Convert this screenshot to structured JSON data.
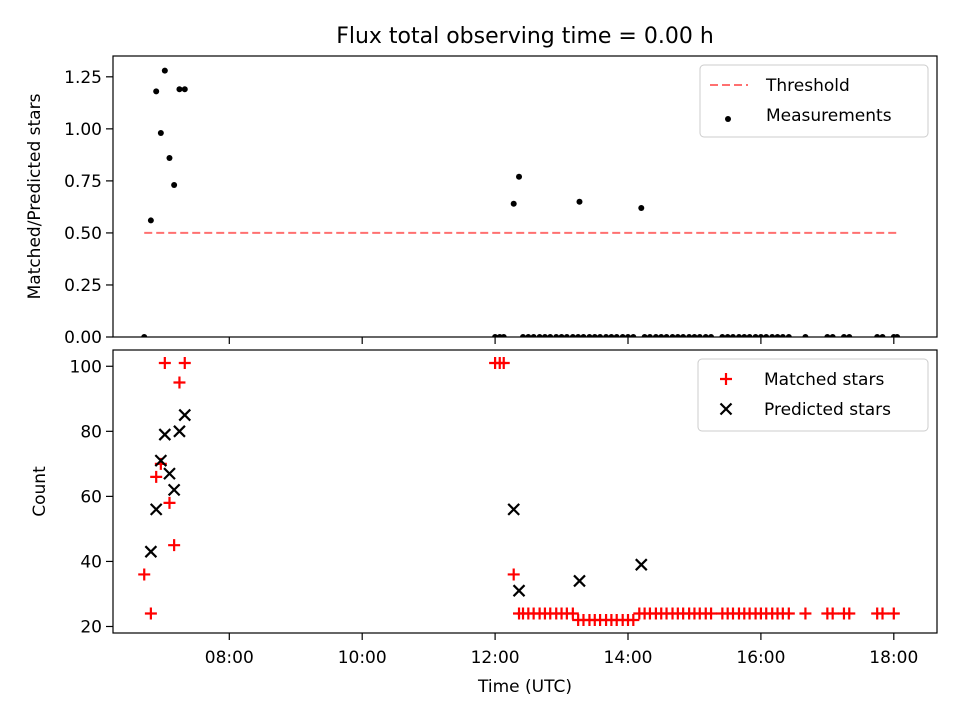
{
  "figure": {
    "title": "Flux total observing time = 0.00 h"
  },
  "chart_data": [
    {
      "type": "scatter",
      "ylabel": "Matched/Predicted stars",
      "ylim": [
        0,
        1.35
      ],
      "xlim_hours": [
        6.25,
        18.65
      ],
      "yticks": [
        0.0,
        0.25,
        0.5,
        0.75,
        1.0,
        1.25
      ],
      "ytick_labels": [
        "0.00",
        "0.25",
        "0.50",
        "0.75",
        "1.00",
        "1.25"
      ],
      "grid": false,
      "legend_position": "top-right",
      "threshold": {
        "name": "Threshold",
        "value": 0.5,
        "x_start": 6.72,
        "x_end": 18.05,
        "color": "#ff7070"
      },
      "series": [
        {
          "name": "Measurements",
          "color": "#000000",
          "marker": "dot",
          "points": [
            [
              6.72,
              0.0
            ],
            [
              6.82,
              0.56
            ],
            [
              6.9,
              1.18
            ],
            [
              6.97,
              0.98
            ],
            [
              7.03,
              1.28
            ],
            [
              7.1,
              0.86
            ],
            [
              7.17,
              0.73
            ],
            [
              7.25,
              1.19
            ],
            [
              7.33,
              1.19
            ],
            [
              12.0,
              0.0
            ],
            [
              12.07,
              0.0
            ],
            [
              12.13,
              0.0
            ],
            [
              12.28,
              0.64
            ],
            [
              12.36,
              0.77
            ],
            [
              12.42,
              0.0
            ],
            [
              12.5,
              0.0
            ],
            [
              12.58,
              0.0
            ],
            [
              12.67,
              0.0
            ],
            [
              12.75,
              0.0
            ],
            [
              12.83,
              0.0
            ],
            [
              12.92,
              0.0
            ],
            [
              13.0,
              0.0
            ],
            [
              13.08,
              0.0
            ],
            [
              13.17,
              0.0
            ],
            [
              13.25,
              0.0
            ],
            [
              13.27,
              0.65
            ],
            [
              13.33,
              0.0
            ],
            [
              13.42,
              0.0
            ],
            [
              13.5,
              0.0
            ],
            [
              13.58,
              0.0
            ],
            [
              13.67,
              0.0
            ],
            [
              13.75,
              0.0
            ],
            [
              13.83,
              0.0
            ],
            [
              13.92,
              0.0
            ],
            [
              14.0,
              0.0
            ],
            [
              14.08,
              0.0
            ],
            [
              14.2,
              0.62
            ],
            [
              14.25,
              0.0
            ],
            [
              14.33,
              0.0
            ],
            [
              14.42,
              0.0
            ],
            [
              14.5,
              0.0
            ],
            [
              14.58,
              0.0
            ],
            [
              14.67,
              0.0
            ],
            [
              14.75,
              0.0
            ],
            [
              14.83,
              0.0
            ],
            [
              14.92,
              0.0
            ],
            [
              15.0,
              0.0
            ],
            [
              15.08,
              0.0
            ],
            [
              15.17,
              0.0
            ],
            [
              15.25,
              0.0
            ],
            [
              15.42,
              0.0
            ],
            [
              15.5,
              0.0
            ],
            [
              15.58,
              0.0
            ],
            [
              15.67,
              0.0
            ],
            [
              15.75,
              0.0
            ],
            [
              15.83,
              0.0
            ],
            [
              15.92,
              0.0
            ],
            [
              16.0,
              0.0
            ],
            [
              16.08,
              0.0
            ],
            [
              16.17,
              0.0
            ],
            [
              16.25,
              0.0
            ],
            [
              16.33,
              0.0
            ],
            [
              16.42,
              0.0
            ],
            [
              16.67,
              0.0
            ],
            [
              17.0,
              0.0
            ],
            [
              17.08,
              0.0
            ],
            [
              17.25,
              0.0
            ],
            [
              17.33,
              0.0
            ],
            [
              17.75,
              0.0
            ],
            [
              17.83,
              0.0
            ],
            [
              18.0,
              0.0
            ],
            [
              18.05,
              0.0
            ]
          ]
        }
      ]
    },
    {
      "type": "scatter",
      "xlabel": "Time (UTC)",
      "ylabel": "Count",
      "ylim": [
        18,
        105
      ],
      "xlim_hours": [
        6.25,
        18.65
      ],
      "yticks": [
        20,
        40,
        60,
        80,
        100
      ],
      "ytick_labels": [
        "20",
        "40",
        "60",
        "80",
        "100"
      ],
      "xticks": [
        8,
        10,
        12,
        14,
        16,
        18
      ],
      "xtick_labels": [
        "08:00",
        "10:00",
        "12:00",
        "14:00",
        "16:00",
        "18:00"
      ],
      "grid": false,
      "legend_position": "top-right",
      "series": [
        {
          "name": "Matched stars",
          "color": "#ff0000",
          "marker": "plus",
          "points": [
            [
              6.72,
              36
            ],
            [
              6.82,
              24
            ],
            [
              6.9,
              66
            ],
            [
              6.97,
              70
            ],
            [
              7.03,
              101
            ],
            [
              7.1,
              58
            ],
            [
              7.17,
              45
            ],
            [
              7.25,
              95
            ],
            [
              7.33,
              101
            ],
            [
              12.0,
              101
            ],
            [
              12.07,
              101
            ],
            [
              12.13,
              101
            ],
            [
              12.28,
              36
            ],
            [
              12.36,
              24
            ],
            [
              12.42,
              24
            ],
            [
              12.5,
              24
            ],
            [
              12.58,
              24
            ],
            [
              12.67,
              24
            ],
            [
              12.75,
              24
            ],
            [
              12.83,
              24
            ],
            [
              12.92,
              24
            ],
            [
              13.0,
              24
            ],
            [
              13.08,
              24
            ],
            [
              13.17,
              24
            ],
            [
              13.25,
              22
            ],
            [
              13.33,
              22
            ],
            [
              13.42,
              22
            ],
            [
              13.5,
              22
            ],
            [
              13.58,
              22
            ],
            [
              13.67,
              22
            ],
            [
              13.75,
              22
            ],
            [
              13.83,
              22
            ],
            [
              13.92,
              22
            ],
            [
              14.0,
              22
            ],
            [
              14.08,
              22
            ],
            [
              14.17,
              24
            ],
            [
              14.25,
              24
            ],
            [
              14.33,
              24
            ],
            [
              14.42,
              24
            ],
            [
              14.5,
              24
            ],
            [
              14.58,
              24
            ],
            [
              14.67,
              24
            ],
            [
              14.75,
              24
            ],
            [
              14.83,
              24
            ],
            [
              14.92,
              24
            ],
            [
              15.0,
              24
            ],
            [
              15.08,
              24
            ],
            [
              15.17,
              24
            ],
            [
              15.25,
              24
            ],
            [
              15.42,
              24
            ],
            [
              15.5,
              24
            ],
            [
              15.58,
              24
            ],
            [
              15.67,
              24
            ],
            [
              15.75,
              24
            ],
            [
              15.83,
              24
            ],
            [
              15.92,
              24
            ],
            [
              16.0,
              24
            ],
            [
              16.08,
              24
            ],
            [
              16.17,
              24
            ],
            [
              16.25,
              24
            ],
            [
              16.33,
              24
            ],
            [
              16.42,
              24
            ],
            [
              16.67,
              24
            ],
            [
              17.0,
              24
            ],
            [
              17.08,
              24
            ],
            [
              17.25,
              24
            ],
            [
              17.33,
              24
            ],
            [
              17.75,
              24
            ],
            [
              17.83,
              24
            ],
            [
              18.0,
              24
            ]
          ]
        },
        {
          "name": "Predicted stars",
          "color": "#000000",
          "marker": "x",
          "points": [
            [
              6.82,
              43
            ],
            [
              6.9,
              56
            ],
            [
              6.97,
              71
            ],
            [
              7.03,
              79
            ],
            [
              7.1,
              67
            ],
            [
              7.17,
              62
            ],
            [
              7.25,
              80
            ],
            [
              7.33,
              85
            ],
            [
              12.28,
              56
            ],
            [
              12.36,
              31
            ],
            [
              13.27,
              34
            ],
            [
              14.2,
              39
            ]
          ]
        }
      ]
    }
  ]
}
